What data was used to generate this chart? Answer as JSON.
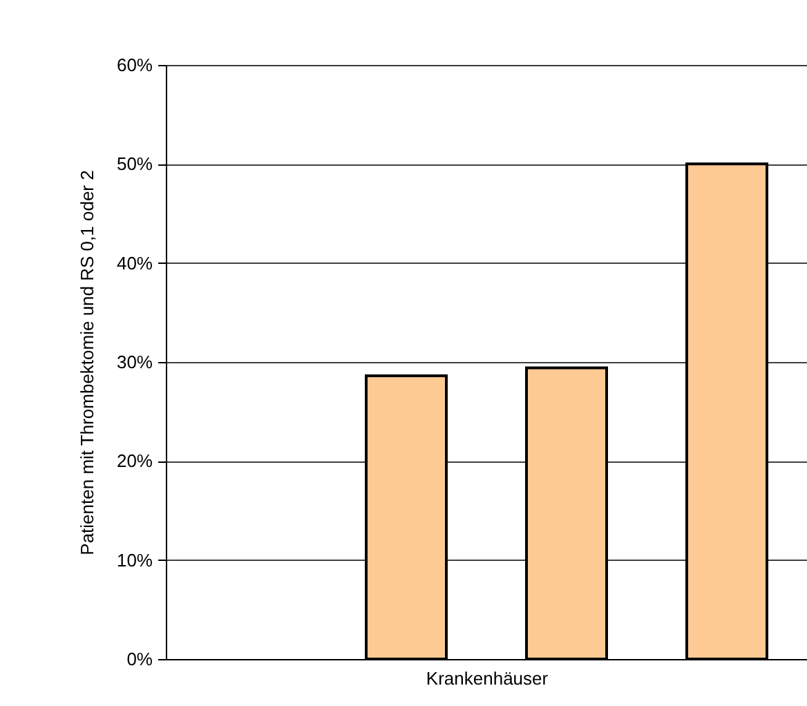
{
  "chart_data": {
    "type": "bar",
    "xlabel": "Krankenhäuser",
    "ylabel": "Patienten mit Thrombektomie und  RS 0,1 oder 2",
    "categories": [
      null,
      null,
      null,
      null
    ],
    "values": [
      null,
      28.6,
      29.4,
      50.0
    ],
    "color": "#fdca93",
    "ylim": [
      0,
      60
    ],
    "yticks": [
      {
        "value": 0,
        "label": "0%"
      },
      {
        "value": 10,
        "label": "10%"
      },
      {
        "value": 20,
        "label": "20%"
      },
      {
        "value": 30,
        "label": "30%"
      },
      {
        "value": 40,
        "label": "40%"
      },
      {
        "value": 50,
        "label": "50%"
      },
      {
        "value": 60,
        "label": "60%"
      }
    ],
    "grid": "y"
  }
}
